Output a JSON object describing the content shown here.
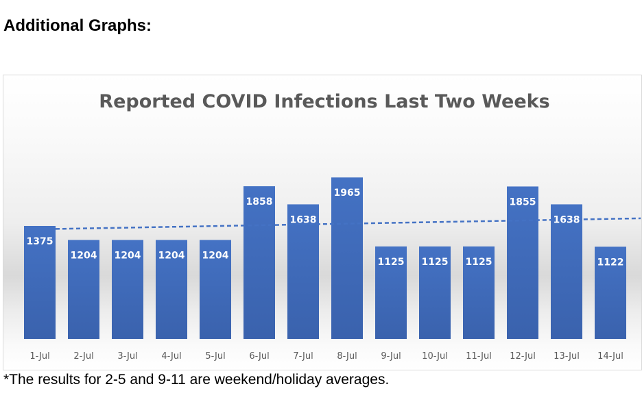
{
  "heading": "Additional Graphs:",
  "footnote": "*The results for 2-5 and 9-11 are weekend/holiday averages.",
  "colors": {
    "bar": "#4472c4",
    "trend": "#4472c4",
    "title": "#595959"
  },
  "chart_data": {
    "type": "bar",
    "title": "Reported COVID Infections Last Two Weeks",
    "categories": [
      "1-Jul",
      "2-Jul",
      "3-Jul",
      "4-Jul",
      "5-Jul",
      "6-Jul",
      "7-Jul",
      "8-Jul",
      "9-Jul",
      "10-Jul",
      "11-Jul",
      "12-Jul",
      "13-Jul",
      "14-Jul"
    ],
    "values": [
      1375,
      1204,
      1204,
      1204,
      1204,
      1858,
      1638,
      1965,
      1125,
      1125,
      1125,
      1855,
      1638,
      1122
    ],
    "data_labels": [
      "1375",
      "1204",
      "1204",
      "1204",
      "1204",
      "1858",
      "1638",
      "1965",
      "1125",
      "1125",
      "1125",
      "1855",
      "1638",
      "1122"
    ],
    "trendline": "linear",
    "xlabel": "",
    "ylabel": "",
    "ylim": [
      0,
      3200
    ],
    "grid": false,
    "legend": "none"
  }
}
